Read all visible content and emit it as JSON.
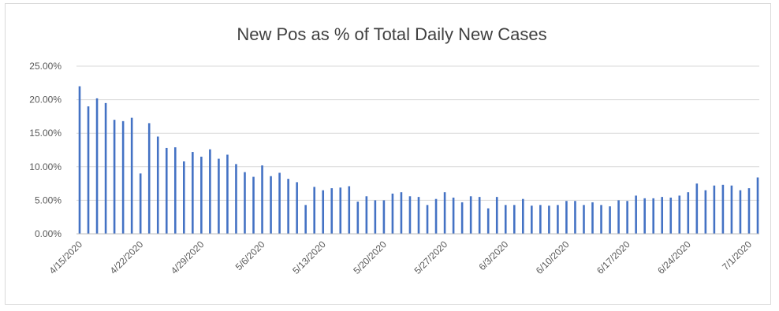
{
  "chart_data": {
    "type": "bar",
    "title": "New Pos as % of Total Daily New Cases",
    "xlabel": "",
    "ylabel": "",
    "ylim": [
      0,
      25
    ],
    "y_ticks": [
      "0.00%",
      "5.00%",
      "10.00%",
      "15.00%",
      "20.00%",
      "25.00%"
    ],
    "x_tick_labels": [
      "4/15/2020",
      "4/22/2020",
      "4/29/2020",
      "5/6/2020",
      "5/13/2020",
      "5/20/2020",
      "5/27/2020",
      "6/3/2020",
      "6/10/2020",
      "6/17/2020",
      "6/24/2020",
      "7/1/2020"
    ],
    "x_start": "4/15/2020",
    "x_end": "7/1/2020",
    "grid": true,
    "legend": "none",
    "color": "#4472c4",
    "values": [
      22.0,
      19.0,
      20.2,
      19.5,
      17.0,
      16.8,
      17.3,
      9.0,
      16.5,
      14.5,
      12.8,
      12.9,
      10.8,
      12.2,
      11.5,
      12.6,
      11.2,
      11.8,
      10.4,
      9.2,
      8.5,
      10.2,
      8.6,
      9.1,
      8.2,
      7.7,
      4.3,
      7.0,
      6.5,
      6.8,
      6.9,
      7.1,
      4.8,
      5.6,
      5.0,
      5.0,
      6.0,
      6.2,
      5.6,
      5.5,
      4.3,
      5.2,
      6.2,
      5.4,
      4.7,
      5.6,
      5.5,
      3.8,
      5.5,
      4.3,
      4.3,
      5.2,
      4.2,
      4.3,
      4.2,
      4.3,
      4.9,
      4.9,
      4.3,
      4.7,
      4.3,
      4.1,
      5.0,
      4.9,
      5.7,
      5.3,
      5.3,
      5.5,
      5.4,
      5.7,
      6.2,
      7.5,
      6.5,
      7.2,
      7.3,
      7.2,
      6.5,
      6.8,
      8.4
    ]
  }
}
